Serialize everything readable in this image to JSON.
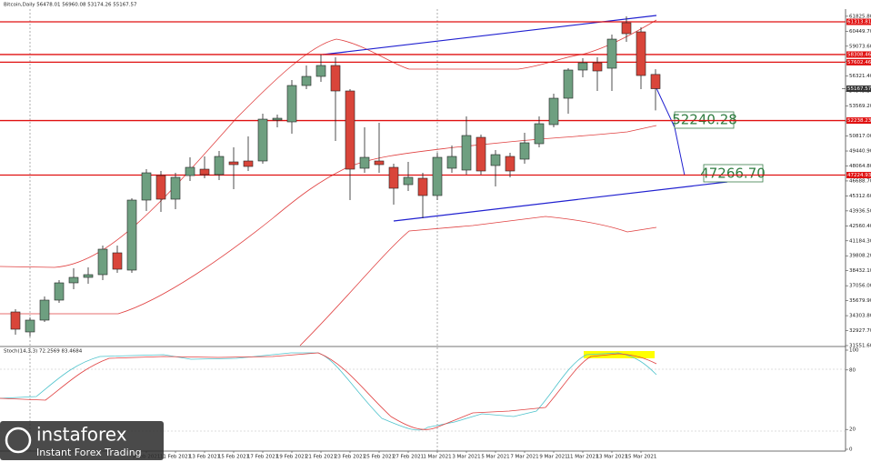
{
  "chart_data": {
    "type": "candlestick",
    "title": "Bitcoin,Daily  56478.01 56960.08 53174.26 55167.57",
    "categories": [
      null,
      null,
      null,
      null,
      null,
      null,
      null,
      null,
      null,
      "9 Feb 2021",
      null,
      "11 Feb 2021",
      null,
      "13 Feb 2021",
      null,
      "15 Feb 2021",
      null,
      "17 Feb 2021",
      null,
      "19 Feb 2021",
      null,
      "21 Feb 2021",
      null,
      "23 Feb 2021",
      null,
      "25 Feb 2021",
      null,
      "27 Feb 2021",
      null,
      "1 Mar 2021",
      null,
      "3 Mar 2021",
      null,
      "5 Mar 2021",
      null,
      "7 Mar 2021",
      null,
      "9 Mar 2021",
      null,
      "11 Mar 2021",
      null,
      "13 Mar 2021",
      null,
      "15 Mar 2021",
      null
    ],
    "open": [
      34645,
      32806,
      33893,
      35732,
      37320,
      37822,
      38073,
      40079,
      38491,
      44928,
      47185,
      45012,
      47185,
      47770,
      47269,
      48439,
      48523,
      48523,
      52285,
      52118,
      55462,
      56298,
      57301,
      54960,
      47854,
      48523,
      47938,
      46349,
      46934,
      45346,
      47854,
      47687,
      50696,
      48105,
      48941,
      48690,
      50111,
      51867,
      54291,
      56883,
      57552,
      57050,
      61230,
      60394,
      56478.01
    ],
    "high": [
      34896,
      34144,
      36066,
      37571,
      38658,
      38742,
      40748,
      40748,
      45095,
      47770,
      47603,
      47436,
      48857,
      48941,
      49442,
      49777,
      50780,
      52870,
      52786,
      55963,
      57301,
      58304,
      58053,
      55127,
      51616,
      52034,
      48272,
      48439,
      47436,
      49275,
      49944,
      52619,
      50947,
      49526,
      49275,
      51114,
      52619,
      54709,
      57050,
      57970,
      58053,
      60143,
      61815,
      60812,
      56960.08
    ],
    "low": [
      32555,
      32388,
      33726,
      35481,
      36735,
      37237,
      37571,
      38240,
      38240,
      43925,
      43841,
      44092,
      46684,
      46934,
      46767,
      45931,
      47603,
      48272,
      51616,
      51031,
      55127,
      55796,
      50362,
      44928,
      47436,
      47436,
      44510,
      45764,
      43256,
      44928,
      47436,
      47269,
      47269,
      46182,
      47018,
      48272,
      49777,
      51616,
      52870,
      56214,
      54960,
      54960,
      59474,
      55127,
      53174.26
    ],
    "close": [
      33057,
      33893,
      35732,
      37320,
      37822,
      38073,
      40414,
      38574,
      44928,
      47436,
      45012,
      47018,
      47938,
      47269,
      48941,
      48188,
      48021,
      52368,
      52452,
      55462,
      56298,
      57301,
      54960,
      47770,
      48857,
      48188,
      46015,
      47018,
      45346,
      48857,
      48941,
      50864,
      47603,
      49108,
      47603,
      50195,
      51950,
      54291,
      56883,
      57552,
      56799,
      59725,
      60227,
      56381,
      55167.57
    ],
    "up_color": "#6e9f80",
    "down_color": "#d9453a",
    "ylim": [
      31551.6,
      61900
    ],
    "yticks": [
      {
        "value": 31551.6,
        "label": "31551.60"
      },
      {
        "value": 32927.7,
        "label": "32927.70"
      },
      {
        "value": 34303.8,
        "label": "34303.80"
      },
      {
        "value": 35679.9,
        "label": "35679.90"
      },
      {
        "value": 37056,
        "label": "37056.00"
      },
      {
        "value": 38432.1,
        "label": "38432.10"
      },
      {
        "value": 39808.2,
        "label": "39808.20"
      },
      {
        "value": 41184.3,
        "label": "41184.30"
      },
      {
        "value": 42560.4,
        "label": "42560.40"
      },
      {
        "value": 43936.5,
        "label": "43936.50"
      },
      {
        "value": 45312.6,
        "label": "45312.60"
      },
      {
        "value": 46688.7,
        "label": "46688.70"
      },
      {
        "value": 48064.8,
        "label": "48064.80"
      },
      {
        "value": 49440.9,
        "label": "49440.90"
      },
      {
        "value": 50817,
        "label": "50817.00"
      },
      {
        "value": 52193.1,
        "label": "52193.10"
      },
      {
        "value": 53569.2,
        "label": "53569.20"
      },
      {
        "value": 54945.3,
        "label": "54945.30"
      },
      {
        "value": 56321.4,
        "label": "56321.40"
      },
      {
        "value": 57697.5,
        "label": "57697.50"
      },
      {
        "value": 59073.6,
        "label": "59073.60"
      },
      {
        "value": 60449.7,
        "label": "60449.70"
      },
      {
        "value": 61825.8,
        "label": "61825.80"
      }
    ],
    "levels": [
      61313.81,
      58308.46,
      57602.46,
      52238.23,
      47224.93
    ],
    "level_color": "#e01010",
    "last_price": 55167.57,
    "annotations": [
      "52240.28",
      "47266.70"
    ],
    "stoch": {
      "title": "Stoch(14,3,3) 72.2569 83.4684",
      "ylim": [
        0,
        100
      ],
      "yticks": [
        100,
        80,
        20,
        0
      ]
    },
    "logo": {
      "name": "instaforex",
      "tagline": "Instant Forex Trading"
    }
  }
}
